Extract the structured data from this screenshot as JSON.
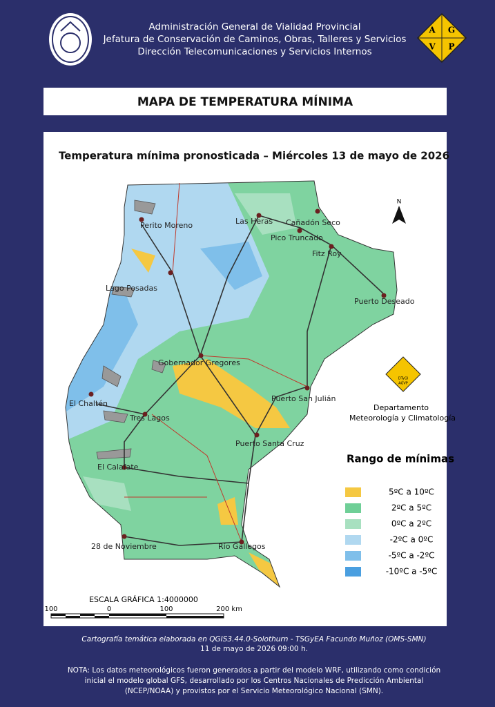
{
  "header": {
    "lines": [
      "Administración General de Vialidad Provincial",
      "Jefatura de Conservación de Caminos, Obras, Talleres y Servicios",
      "Dirección Telecomunicaciones y Servicios Internos"
    ],
    "logo_letters": [
      "A",
      "G",
      "V",
      "P"
    ]
  },
  "title": "MAPA DE TEMPERATURA MÍNIMA",
  "map": {
    "subtitle": "Temperatura mínima pronosticada – Miércoles 13 de mayo de 2026",
    "places": [
      "Perito Moreno",
      "Las Heras",
      "Cañadón Seco",
      "Pico Truncado",
      "Fitz Roy",
      "Lago Posadas",
      "Puerto Deseado",
      "Gobernador Gregores",
      "El Chaltén",
      "Puerto San Julián",
      "Tres Lagos",
      "Puerto Santa Cruz",
      "El Calafate",
      "28 de Noviembre",
      "Río Gallegos"
    ],
    "north": "N",
    "dept_logo": [
      "DTyGI",
      "AGVP"
    ],
    "dept_label": [
      "Departamento",
      "Meteorología y Climatología"
    ],
    "legend": {
      "title": "Rango  de mínimas",
      "items": [
        {
          "label": "5ºC a 10ºC",
          "color": "#f5c842"
        },
        {
          "label": "2ºC a 5ºC",
          "color": "#6fcf97"
        },
        {
          "label": "0ºC a 2ºC",
          "color": "#a8e0c0"
        },
        {
          "label": "-2ºC a 0ºC",
          "color": "#b0d8f0"
        },
        {
          "label": "-5ºC a -2ºC",
          "color": "#7fbfea"
        },
        {
          "label": "-10ºC a -5ºC",
          "color": "#4a9fe0"
        }
      ]
    },
    "scale": {
      "title": "ESCALA GRÁFICA 1:4000000",
      "ticks": [
        "100",
        "0",
        "100",
        "200 km"
      ]
    }
  },
  "footer": {
    "credits": [
      "Cartografía temática elaborada en QGIS3.44.0-Solothurn - TSGyEA Facundo Muñoz (OMS-SMN)",
      "11 de mayo de 2026 09:00 h."
    ],
    "note": [
      "NOTA: Los datos meteorológicos fueron generados a partir del modelo WRF, utilizando como condición",
      "inicial el modelo global GFS, desarrollado por los Centros Nacionales de Predicción Ambiental",
      "(NCEP/NOAA) y provistos por el Servicio Meteorológico Nacional (SMN)."
    ]
  }
}
